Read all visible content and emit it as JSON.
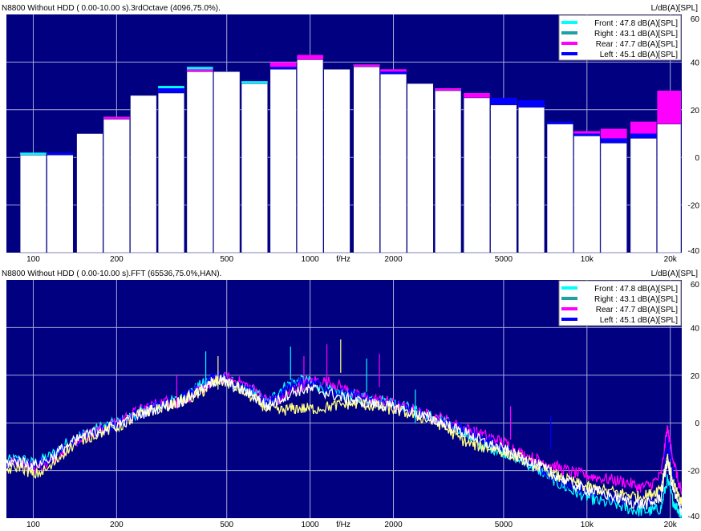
{
  "chart_data": [
    {
      "type": "bar",
      "title": "N8800  Without HDD ( 0.00-10.00 s).3rdOctave (4096,75.0%).",
      "ylabel": "L/dB(A)[SPL]",
      "xlabel": "f/Hz",
      "ylim": [
        -40,
        60
      ],
      "yticks": [
        "60",
        "40",
        "20",
        "0",
        "-20",
        "-40"
      ],
      "ytick_values": [
        60,
        40,
        20,
        0,
        -20,
        -40
      ],
      "xticks": [
        "100",
        "200",
        "500",
        "1000",
        "2000",
        "5000",
        "10k",
        "20k"
      ],
      "xtick_values": [
        100,
        200,
        500,
        1000,
        2000,
        5000,
        10000,
        20000
      ],
      "xlim": [
        80,
        22000
      ],
      "x_scale": "log",
      "grid": true,
      "legend_position": "top-right",
      "legend": [
        {
          "label": "Front : 47.8 dB(A)[SPL]",
          "color": "#00ffff"
        },
        {
          "label": "Right : 43.1 dB(A)[SPL]",
          "color": "#20a0a0"
        },
        {
          "label": "Rear : 47.7 dB(A)[SPL]",
          "color": "#ff00ff"
        },
        {
          "label": "Left : 45.1 dB(A)[SPL]",
          "color": "#0000ff"
        }
      ],
      "categories": [
        100,
        125,
        160,
        200,
        250,
        315,
        400,
        500,
        630,
        800,
        1000,
        1250,
        1600,
        2000,
        2500,
        3150,
        4000,
        5000,
        6300,
        8000,
        10000,
        12500,
        16000,
        20000
      ],
      "series": [
        {
          "name": "Front",
          "color": "#00ffff",
          "values": [
            2,
            1,
            10,
            17,
            26,
            30,
            38,
            36,
            32,
            40,
            41,
            37,
            39,
            36,
            31,
            29,
            25,
            24,
            22,
            14,
            10,
            8,
            10,
            16
          ]
        },
        {
          "name": "Rear",
          "color": "#ff00ff",
          "values": [
            1,
            1,
            10,
            17,
            26,
            29,
            37,
            36,
            31,
            40,
            43,
            37,
            39,
            37,
            31,
            29,
            27,
            25,
            21,
            14,
            11,
            12,
            15,
            28
          ]
        },
        {
          "name": "Left",
          "color": "#0000ff",
          "values": [
            1,
            2,
            10,
            16,
            25,
            29,
            36,
            35,
            30,
            38,
            41,
            37,
            38,
            36,
            31,
            28,
            25,
            25,
            24,
            15,
            10,
            8,
            10,
            14
          ]
        },
        {
          "name": "Right",
          "color": "#ffffff",
          "values": [
            1,
            1,
            10,
            16,
            26,
            27,
            36,
            36,
            31,
            37,
            41,
            37,
            38,
            35,
            31,
            28,
            25,
            22,
            21,
            14,
            9,
            6,
            8,
            14
          ]
        }
      ]
    },
    {
      "type": "line",
      "title": "N8800  Without HDD ( 0.00-10.00 s).FFT (65536,75.0%,HAN).",
      "ylabel": "L/dB(A)[SPL]",
      "xlabel": "f/Hz",
      "ylim": [
        -40,
        60
      ],
      "yticks": [
        "60",
        "40",
        "20",
        "0",
        "-20",
        "-40"
      ],
      "ytick_values": [
        60,
        40,
        20,
        0,
        -20,
        -40
      ],
      "xticks": [
        "100",
        "200",
        "500",
        "1000",
        "2000",
        "5000",
        "10k",
        "20k"
      ],
      "xtick_values": [
        100,
        200,
        500,
        1000,
        2000,
        5000,
        10000,
        20000
      ],
      "xlim": [
        80,
        22000
      ],
      "x_scale": "log",
      "grid": true,
      "legend_position": "top-right",
      "legend": [
        {
          "label": "Front : 47.8 dB(A)[SPL]",
          "color": "#00ffff"
        },
        {
          "label": "Right : 43.1 dB(A)[SPL]",
          "color": "#20a0a0"
        },
        {
          "label": "Rear : 47.7 dB(A)[SPL]",
          "color": "#ff00ff"
        },
        {
          "label": "Left : 45.1 dB(A)[SPL]",
          "color": "#0000ff"
        }
      ],
      "x": [
        80,
        90,
        100,
        115,
        130,
        150,
        175,
        200,
        230,
        260,
        300,
        340,
        380,
        420,
        460,
        500,
        560,
        630,
        700,
        780,
        860,
        950,
        1050,
        1200,
        1350,
        1500,
        1700,
        1900,
        2100,
        2400,
        2700,
        3000,
        3400,
        3800,
        4200,
        4700,
        5200,
        5800,
        6500,
        7200,
        8000,
        9000,
        10000,
        11000,
        12500,
        14000,
        15500,
        17000,
        18500,
        19500,
        20500,
        21500,
        22000
      ],
      "series": [
        {
          "name": "Front",
          "color": "#00ffff",
          "values": [
            -16,
            -15,
            -17,
            -14,
            -9,
            -5,
            -2,
            0,
            3,
            6,
            8,
            10,
            14,
            17,
            19,
            18,
            15,
            13,
            8,
            14,
            17,
            18,
            16,
            13,
            12,
            11,
            10,
            9,
            8,
            5,
            3,
            1,
            -2,
            -6,
            -10,
            -11,
            -13,
            -16,
            -19,
            -22,
            -26,
            -29,
            -31,
            -33,
            -34,
            -36,
            -37,
            -37,
            -36,
            -24,
            -33,
            -37,
            -39
          ]
        },
        {
          "name": "Rear",
          "color": "#ff00ff",
          "values": [
            -17,
            -16,
            -19,
            -17,
            -11,
            -6,
            -3,
            0,
            4,
            7,
            9,
            9,
            12,
            15,
            18,
            19,
            17,
            14,
            9,
            10,
            14,
            16,
            18,
            17,
            14,
            11,
            10,
            9,
            7,
            5,
            3,
            2,
            -1,
            -3,
            -5,
            -7,
            -9,
            -13,
            -15,
            -17,
            -19,
            -21,
            -22,
            -23,
            -24,
            -25,
            -27,
            -26,
            -22,
            -2,
            -15,
            -26,
            -30
          ]
        },
        {
          "name": "Left",
          "color": "#0000ff",
          "values": [
            -18,
            -16,
            -18,
            -15,
            -10,
            -6,
            -3,
            -1,
            3,
            6,
            8,
            10,
            13,
            17,
            20,
            18,
            15,
            12,
            8,
            12,
            16,
            17,
            17,
            14,
            12,
            11,
            9,
            8,
            7,
            4,
            2,
            1,
            -2,
            -4,
            -7,
            -9,
            -12,
            -15,
            -18,
            -21,
            -24,
            -27,
            -28,
            -30,
            -31,
            -32,
            -33,
            -32,
            -28,
            -7,
            -22,
            -33,
            -36
          ]
        },
        {
          "name": "Right",
          "color": "#ffff80",
          "values": [
            -20,
            -18,
            -22,
            -19,
            -12,
            -7,
            -4,
            -2,
            2,
            5,
            7,
            9,
            11,
            14,
            18,
            17,
            14,
            10,
            6,
            5,
            6,
            6,
            6,
            7,
            8,
            8,
            7,
            6,
            5,
            3,
            1,
            -1,
            -6,
            -9,
            -10,
            -11,
            -13,
            -15,
            -18,
            -20,
            -23,
            -25,
            -27,
            -28,
            -29,
            -30,
            -31,
            -30,
            -27,
            -14,
            -25,
            -32,
            -34
          ]
        },
        {
          "name": "",
          "color": "#ffffff",
          "values": [
            -17,
            -16,
            -18,
            -15,
            -10,
            -6,
            -3,
            -1,
            2,
            5,
            7,
            9,
            12,
            15,
            18,
            17,
            14,
            11,
            7,
            10,
            13,
            14,
            14,
            12,
            10,
            9,
            8,
            7,
            6,
            4,
            2,
            0,
            -3,
            -5,
            -8,
            -10,
            -12,
            -15,
            -17,
            -20,
            -23,
            -26,
            -28,
            -29,
            -31,
            -33,
            -34,
            -34,
            -31,
            -16,
            -28,
            -35,
            -37
          ]
        }
      ],
      "peaks": [
        {
          "x": 330,
          "value": 20,
          "color": "#ff00ff"
        },
        {
          "x": 420,
          "value": 30,
          "color": "#00ffff"
        },
        {
          "x": 465,
          "value": 28,
          "color": "#ffff80"
        },
        {
          "x": 850,
          "value": 32,
          "color": "#00ffff"
        },
        {
          "x": 950,
          "value": 28,
          "color": "#ff00ff"
        },
        {
          "x": 1150,
          "value": 33,
          "color": "#ff00ff"
        },
        {
          "x": 1290,
          "value": 35,
          "color": "#ffff80"
        },
        {
          "x": 1600,
          "value": 27,
          "color": "#00ffff"
        },
        {
          "x": 1780,
          "value": 29,
          "color": "#ff00ff"
        },
        {
          "x": 2400,
          "value": 14,
          "color": "#00ffff"
        },
        {
          "x": 5300,
          "value": 7,
          "color": "#ff00ff"
        },
        {
          "x": 7400,
          "value": 3,
          "color": "#0000ff"
        }
      ]
    }
  ]
}
